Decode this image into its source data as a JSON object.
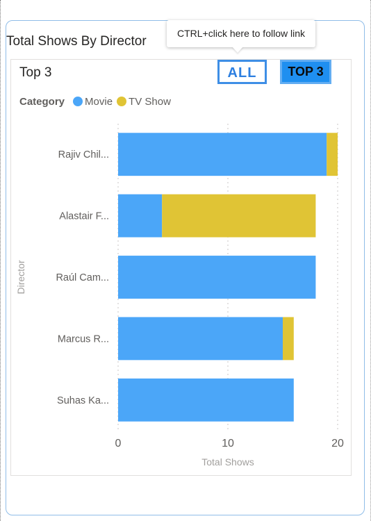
{
  "tooltip": {
    "text": "CTRL+click here to follow link"
  },
  "visual": {
    "title": "Total Shows By Director",
    "more_options_icon": "ellipsis-icon",
    "more_options_glyph": "•••"
  },
  "panel": {
    "heading": "Top 3",
    "buttons": {
      "all_label": "ALL",
      "top3_label": "TOP 3"
    }
  },
  "colors": {
    "movie": "#4ba6f8",
    "tv_show": "#e0c435",
    "all_button": "#2d7fe0",
    "top3_button": "#1f8ff0"
  },
  "chart_data": {
    "type": "bar",
    "orientation": "horizontal",
    "stacked": true,
    "categories": [
      "Rajiv Chil...",
      "Alastair F...",
      "Raúl Cam...",
      "Marcus R...",
      "Suhas Ka..."
    ],
    "series": [
      {
        "name": "Movie",
        "values": [
          19,
          4,
          18,
          15,
          16
        ]
      },
      {
        "name": "TV Show",
        "values": [
          1,
          14,
          0,
          1,
          0
        ]
      }
    ],
    "legend_title": "Category",
    "legend_position": "top-left",
    "xlabel": "Total Shows",
    "ylabel": "Director",
    "xlim": [
      0,
      20
    ],
    "xticks": [
      0,
      10,
      20
    ],
    "grid": "vertical dotted"
  }
}
